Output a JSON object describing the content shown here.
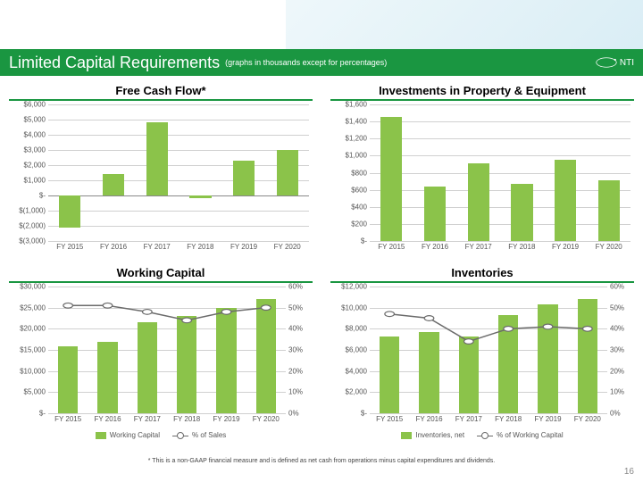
{
  "header": {
    "title": "Limited Capital Requirements",
    "subtitle": "(graphs in thousands except for percentages)",
    "logo_text": "NTI"
  },
  "footnote": "* This is a non-GAAP financial measure and is defined as net cash from operations minus capital expenditures and dividends.",
  "page_number": "16",
  "palette": {
    "bar": "#8bc34a",
    "line": "#6b6b6b",
    "grid": "#d0d0d0",
    "title_bar": "#1a9641"
  },
  "charts": {
    "fcf": {
      "title": "Free Cash Flow*",
      "type": "bar",
      "categories": [
        "FY 2015",
        "FY 2016",
        "FY 2017",
        "FY 2018",
        "FY 2019",
        "FY 2020"
      ],
      "values": [
        -2100,
        1400,
        4800,
        -200,
        2300,
        3000
      ],
      "ymin": -3000,
      "ymax": 6000,
      "ystep": 1000,
      "y_format": "paren-dollar"
    },
    "ppe": {
      "title": "Investments in Property & Equipment",
      "type": "bar",
      "categories": [
        "FY 2015",
        "FY 2016",
        "FY 2017",
        "FY 2018",
        "FY 2019",
        "FY 2020"
      ],
      "values": [
        1450,
        640,
        910,
        670,
        950,
        710
      ],
      "ymin": 0,
      "ymax": 1600,
      "ystep": 200,
      "y_format": "paren-dollar"
    },
    "wc": {
      "title": "Working Capital",
      "type": "bar-line",
      "categories": [
        "FY 2015",
        "FY 2016",
        "FY 2017",
        "FY 2018",
        "FY 2019",
        "FY 2020"
      ],
      "bar_values": [
        15800,
        16800,
        21500,
        23000,
        25000,
        27000
      ],
      "line_values": [
        51,
        51,
        48,
        44,
        48,
        50
      ],
      "ymin": 0,
      "ymax": 30000,
      "ystep": 5000,
      "y2min": 0,
      "y2max": 60,
      "y2step": 10,
      "y_format": "paren-dollar",
      "legend": {
        "bar": "Working Capital",
        "line": "% of Sales"
      }
    },
    "inv": {
      "title": "Inventories",
      "type": "bar-line",
      "categories": [
        "FY 2015",
        "FY 2016",
        "FY 2017",
        "FY 2018",
        "FY 2019",
        "FY 2020"
      ],
      "bar_values": [
        7300,
        7700,
        7300,
        9300,
        10300,
        10800
      ],
      "line_values": [
        47,
        45,
        34,
        40,
        41,
        40
      ],
      "ymin": 0,
      "ymax": 12000,
      "ystep": 2000,
      "y2min": 0,
      "y2max": 60,
      "y2step": 10,
      "y_format": "paren-dollar",
      "legend": {
        "bar": "Inventories, net",
        "line": "% of Working Capital"
      }
    }
  }
}
